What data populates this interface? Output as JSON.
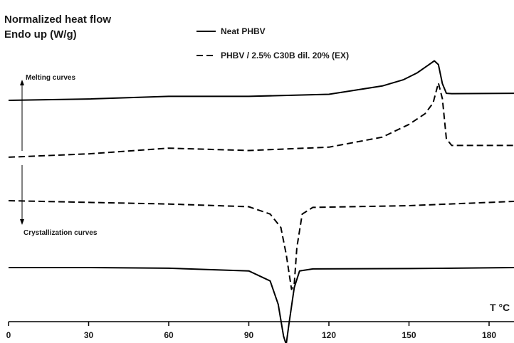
{
  "chart_data": {
    "type": "line",
    "title": "Normalized heat flow",
    "ylabel": "Endo up (W/g)",
    "xlabel": "T °C",
    "xlim": [
      0,
      190
    ],
    "xticks": [
      0,
      30,
      60,
      90,
      120,
      150,
      180
    ],
    "y_axis": "no numeric scale shown; curves are vertically offset (y values in arbitrary units)",
    "annotations": {
      "melting": "Melting curves",
      "crystallization": "Crystallization curves"
    },
    "series": [
      {
        "name": "Neat PHBV",
        "group": "melting",
        "style": "solid",
        "points": [
          [
            0,
            7.0
          ],
          [
            30,
            7.04
          ],
          [
            60,
            7.12
          ],
          [
            90,
            7.12
          ],
          [
            120,
            7.18
          ],
          [
            140,
            7.43
          ],
          [
            148,
            7.62
          ],
          [
            153,
            7.82
          ],
          [
            157,
            8.04
          ],
          [
            159.5,
            8.18
          ],
          [
            161,
            8.07
          ],
          [
            162.5,
            7.5
          ],
          [
            164,
            7.21
          ],
          [
            166,
            7.2
          ],
          [
            190,
            7.21
          ]
        ]
      },
      {
        "name": "PHBV / 2.5% C30B dil. 20% (EX)",
        "group": "melting",
        "style": "dashed",
        "points": [
          [
            0,
            5.3
          ],
          [
            30,
            5.4
          ],
          [
            60,
            5.57
          ],
          [
            90,
            5.5
          ],
          [
            120,
            5.6
          ],
          [
            140,
            5.9
          ],
          [
            150,
            6.28
          ],
          [
            156,
            6.6
          ],
          [
            159,
            6.92
          ],
          [
            161,
            7.52
          ],
          [
            162.5,
            7.05
          ],
          [
            164,
            5.85
          ],
          [
            166,
            5.65
          ],
          [
            190,
            5.65
          ]
        ]
      },
      {
        "name": "PHBV / 2.5% C30B dil. 20% (EX)",
        "group": "crystallization",
        "style": "dashed",
        "points": [
          [
            0,
            4.0
          ],
          [
            30,
            3.95
          ],
          [
            60,
            3.9
          ],
          [
            90,
            3.82
          ],
          [
            98,
            3.6
          ],
          [
            102,
            3.2
          ],
          [
            104,
            2.4
          ],
          [
            106,
            1.35
          ],
          [
            107,
            1.5
          ],
          [
            108,
            2.6
          ],
          [
            110,
            3.6
          ],
          [
            114,
            3.8
          ],
          [
            150,
            3.85
          ],
          [
            190,
            3.98
          ]
        ]
      },
      {
        "name": "Neat PHBV",
        "group": "crystallization",
        "style": "solid",
        "points": [
          [
            0,
            2.0
          ],
          [
            30,
            2.0
          ],
          [
            60,
            1.98
          ],
          [
            90,
            1.9
          ],
          [
            98,
            1.6
          ],
          [
            101,
            0.9
          ],
          [
            103,
            -0.05
          ],
          [
            104,
            -0.3
          ],
          [
            105,
            0.3
          ],
          [
            107,
            1.4
          ],
          [
            109,
            1.9
          ],
          [
            114,
            1.96
          ],
          [
            150,
            1.97
          ],
          [
            190,
            2.0
          ]
        ]
      }
    ]
  }
}
